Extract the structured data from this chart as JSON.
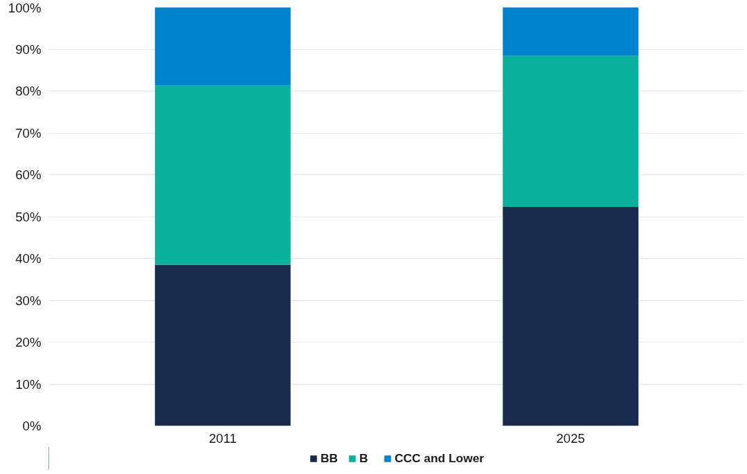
{
  "chart_data": {
    "type": "bar",
    "stacked": true,
    "categories": [
      "2011",
      "2025"
    ],
    "series": [
      {
        "name": "BB",
        "color": "#182b4d",
        "values": [
          38.5,
          52.3
        ]
      },
      {
        "name": "B",
        "color": "#0ab19c",
        "values": [
          42.8,
          36.1
        ]
      },
      {
        "name": "CCC and Lower",
        "color": "#0083cf",
        "values": [
          18.7,
          11.6
        ]
      }
    ],
    "ylim": [
      0,
      100
    ],
    "yticks": [
      {
        "value": 0,
        "label": "0%"
      },
      {
        "value": 10,
        "label": "10%"
      },
      {
        "value": 20,
        "label": "20%"
      },
      {
        "value": 30,
        "label": "30%"
      },
      {
        "value": 40,
        "label": "40%"
      },
      {
        "value": 50,
        "label": "50%"
      },
      {
        "value": 60,
        "label": "60%"
      },
      {
        "value": 70,
        "label": "70%"
      },
      {
        "value": 80,
        "label": "80%"
      },
      {
        "value": 90,
        "label": "90%"
      },
      {
        "value": 100,
        "label": "100%"
      }
    ],
    "grid": "y",
    "legend": "bottom"
  }
}
